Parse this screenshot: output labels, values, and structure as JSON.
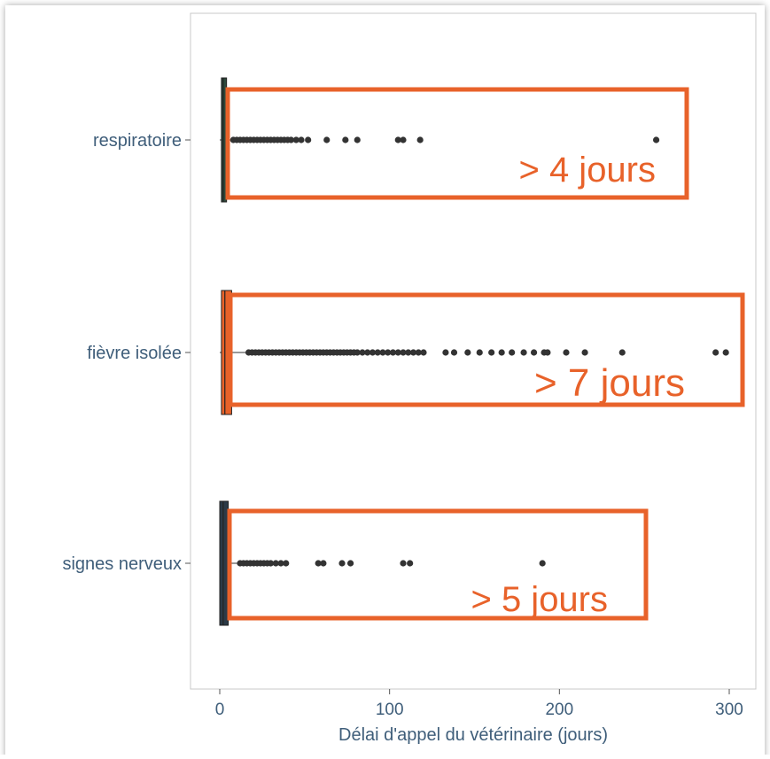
{
  "chart_data": {
    "type": "boxplot",
    "orientation": "horizontal",
    "xlabel": "Délai d'appel du vétérinaire (jours)",
    "ylabel": "",
    "xlim": [
      -15,
      312
    ],
    "xticks": [
      0,
      100,
      200,
      300
    ],
    "grid": false,
    "categories": [
      "respiratoire",
      "fièvre isolée",
      "signes nerveux"
    ],
    "series": [
      {
        "category": "respiratoire",
        "color": "#2e4a3c",
        "q1": 1,
        "median": 2,
        "q3": 4,
        "whisker_low": 0,
        "whisker_high": 8,
        "outliers": [
          8,
          10,
          12,
          14,
          16,
          18,
          20,
          22,
          24,
          26,
          28,
          30,
          32,
          34,
          36,
          38,
          40,
          42,
          45,
          48,
          52,
          63,
          74,
          81,
          105,
          108,
          118,
          257
        ],
        "annotation": "> 4 jours"
      },
      {
        "category": "fièvre isolée",
        "color": "#e8622a",
        "q1": 1,
        "median": 3,
        "q3": 7,
        "whisker_low": 0,
        "whisker_high": 16,
        "outliers": [
          17,
          19,
          21,
          23,
          25,
          27,
          29,
          31,
          33,
          35,
          37,
          39,
          41,
          43,
          45,
          47,
          49,
          51,
          53,
          55,
          57,
          59,
          61,
          63,
          65,
          67,
          69,
          71,
          73,
          75,
          77,
          79,
          81,
          84,
          87,
          90,
          93,
          96,
          99,
          102,
          105,
          108,
          111,
          114,
          117,
          120,
          133,
          138,
          146,
          153,
          160,
          166,
          172,
          179,
          185,
          191,
          193,
          204,
          215,
          237,
          292,
          298
        ],
        "annotation": "> 7 jours"
      },
      {
        "category": "signes nerveux",
        "color": "#2b3a47",
        "q1": 0,
        "median": 2,
        "q3": 5,
        "whisker_low": 0,
        "whisker_high": 11,
        "outliers": [
          12,
          14,
          16,
          18,
          20,
          22,
          24,
          26,
          28,
          30,
          33,
          36,
          39,
          58,
          61,
          72,
          77,
          108,
          112,
          190
        ],
        "annotation": "> 5 jours"
      }
    ],
    "annotation_color": "#e8622a"
  }
}
